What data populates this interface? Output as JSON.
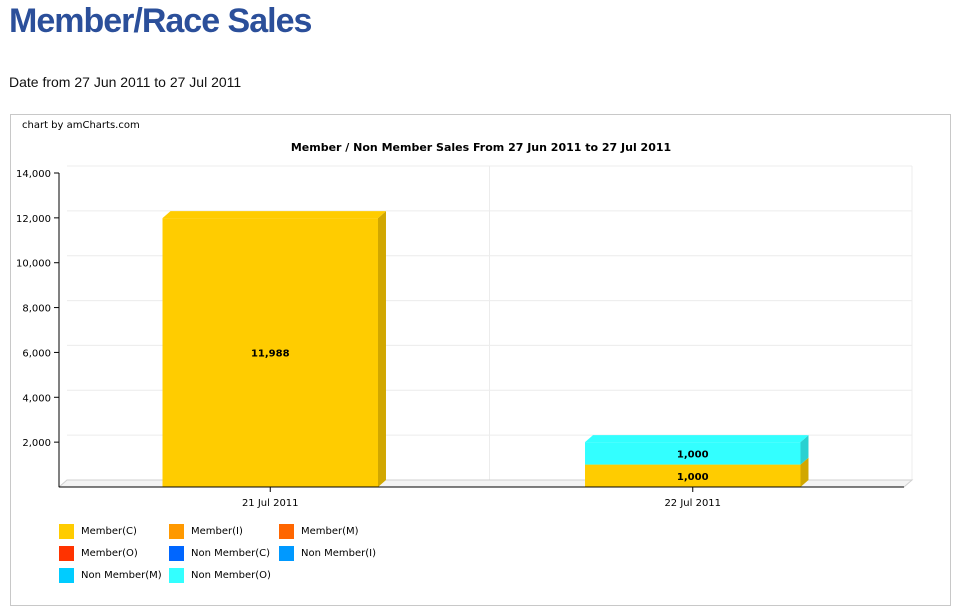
{
  "page": {
    "title": "Member/Race Sales",
    "date_range": "Date from 27 Jun 2011 to 27 Jul 2011"
  },
  "chart_data": {
    "type": "bar",
    "stacked": true,
    "style": "3d",
    "credit": "chart by amCharts.com",
    "title": "Member / Non Member Sales From 27 Jun 2011 to 27 Jul 2011",
    "xlabel": "",
    "ylabel": "",
    "ylim": [
      0,
      14000
    ],
    "yticks": [
      2000,
      4000,
      6000,
      8000,
      10000,
      12000,
      14000
    ],
    "ytick_labels": [
      "2,000",
      "4,000",
      "6,000",
      "8,000",
      "10,000",
      "12,000",
      "14,000"
    ],
    "grid": true,
    "legend_position": "bottom-left",
    "categories": [
      "21 Jul 2011",
      "22 Jul 2011"
    ],
    "series": [
      {
        "name": "Member(C)",
        "color": "#ffcc00",
        "values": [
          11988,
          1000
        ]
      },
      {
        "name": "Member(I)",
        "color": "#ff9900",
        "values": [
          0,
          0
        ]
      },
      {
        "name": "Member(M)",
        "color": "#ff6600",
        "values": [
          0,
          0
        ]
      },
      {
        "name": "Member(O)",
        "color": "#ff3300",
        "values": [
          0,
          0
        ]
      },
      {
        "name": "Non Member(C)",
        "color": "#0066ff",
        "values": [
          0,
          0
        ]
      },
      {
        "name": "Non Member(I)",
        "color": "#0099ff",
        "values": [
          0,
          0
        ]
      },
      {
        "name": "Non Member(M)",
        "color": "#00ccff",
        "values": [
          0,
          0
        ]
      },
      {
        "name": "Non Member(O)",
        "color": "#33ffff",
        "values": [
          0,
          1000
        ]
      }
    ],
    "data_labels": [
      {
        "category": "21 Jul 2011",
        "series": "Member(C)",
        "text": "11,988"
      },
      {
        "category": "22 Jul 2011",
        "series": "Member(C)",
        "text": "1,000"
      },
      {
        "category": "22 Jul 2011",
        "series": "Non Member(O)",
        "text": "1,000"
      }
    ]
  }
}
